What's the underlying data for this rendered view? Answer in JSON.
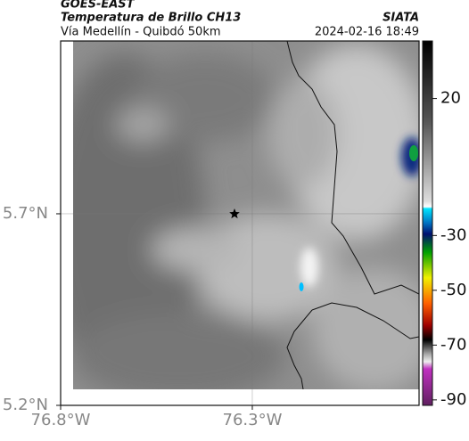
{
  "header": {
    "product": "GOES-EAST",
    "title": "Temperatura de Brillo CH13",
    "subtitle": "Vía Medellín - Quibdó 50km",
    "source": "SIATA",
    "timestamp": "2024-02-16 18:49"
  },
  "map": {
    "xlim": [
      -76.8,
      -75.865
    ],
    "ylim": [
      5.2,
      6.151
    ],
    "xticks": [
      {
        "value": -76.8,
        "label": "76.8°W"
      },
      {
        "value": -76.3,
        "label": "76.3°W"
      }
    ],
    "yticks": [
      {
        "value": 5.2,
        "label": "5.2°N"
      },
      {
        "value": 5.7,
        "label": "5.7°N"
      }
    ],
    "grid": true
  },
  "colorbar": {
    "lim": [
      41,
      -92
    ],
    "ticks": [
      20,
      -30,
      -50,
      -70,
      -90
    ]
  }
}
